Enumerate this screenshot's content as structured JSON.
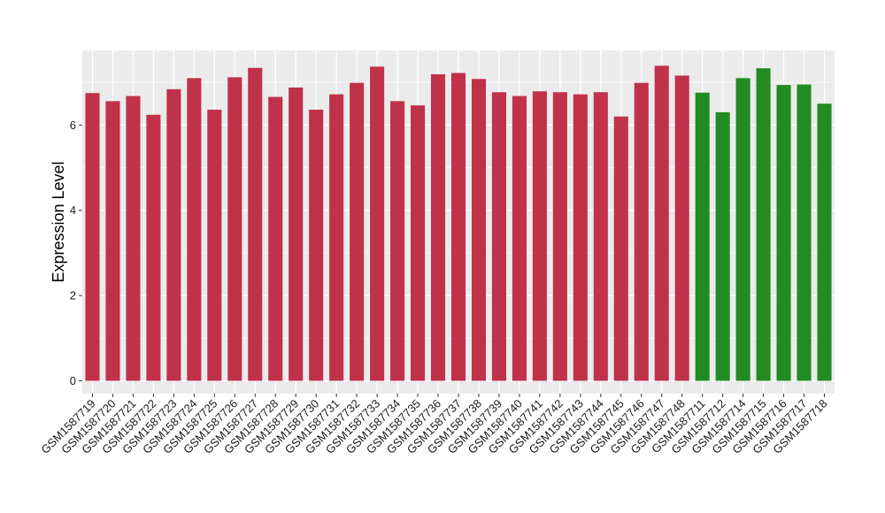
{
  "chart_data": {
    "type": "bar",
    "title": "",
    "xlabel": "",
    "ylabel": "Expression Level",
    "ylim": [
      -0.3,
      7.75
    ],
    "yticks": [
      0,
      2,
      4,
      6
    ],
    "grid": true,
    "background_color": "#EBEBEB",
    "categories": [
      "GSM1587719",
      "GSM1587720",
      "GSM1587721",
      "GSM1587722",
      "GSM1587723",
      "GSM1587724",
      "GSM1587725",
      "GSM1587726",
      "GSM1587727",
      "GSM1587728",
      "GSM1587729",
      "GSM1587730",
      "GSM1587731",
      "GSM1587732",
      "GSM1587733",
      "GSM1587734",
      "GSM1587735",
      "GSM1587736",
      "GSM1587737",
      "GSM1587738",
      "GSM1587739",
      "GSM1587740",
      "GSM1587741",
      "GSM1587742",
      "GSM1587743",
      "GSM1587744",
      "GSM1587745",
      "GSM1587746",
      "GSM1587747",
      "GSM1587748",
      "GSM1587711",
      "GSM1587712",
      "GSM1587714",
      "GSM1587715",
      "GSM1587716",
      "GSM1587717",
      "GSM1587718"
    ],
    "values": [
      6.75,
      6.56,
      6.68,
      6.24,
      6.84,
      7.1,
      6.36,
      7.12,
      7.34,
      6.66,
      6.88,
      6.36,
      6.72,
      6.99,
      7.37,
      6.56,
      6.46,
      7.19,
      7.22,
      7.08,
      6.77,
      6.68,
      6.79,
      6.77,
      6.72,
      6.77,
      6.2,
      6.99,
      7.39,
      7.16,
      6.76,
      6.3,
      7.1,
      7.33,
      6.94,
      6.95,
      6.5
    ],
    "colors": [
      "#C0314A",
      "#C0314A",
      "#C0314A",
      "#C0314A",
      "#C0314A",
      "#C0314A",
      "#C0314A",
      "#C0314A",
      "#C0314A",
      "#C0314A",
      "#C0314A",
      "#C0314A",
      "#C0314A",
      "#C0314A",
      "#C0314A",
      "#C0314A",
      "#C0314A",
      "#C0314A",
      "#C0314A",
      "#C0314A",
      "#C0314A",
      "#C0314A",
      "#C0314A",
      "#C0314A",
      "#C0314A",
      "#C0314A",
      "#C0314A",
      "#C0314A",
      "#C0314A",
      "#C0314A",
      "#228B22",
      "#228B22",
      "#228B22",
      "#228B22",
      "#228B22",
      "#228B22",
      "#228B22"
    ]
  }
}
